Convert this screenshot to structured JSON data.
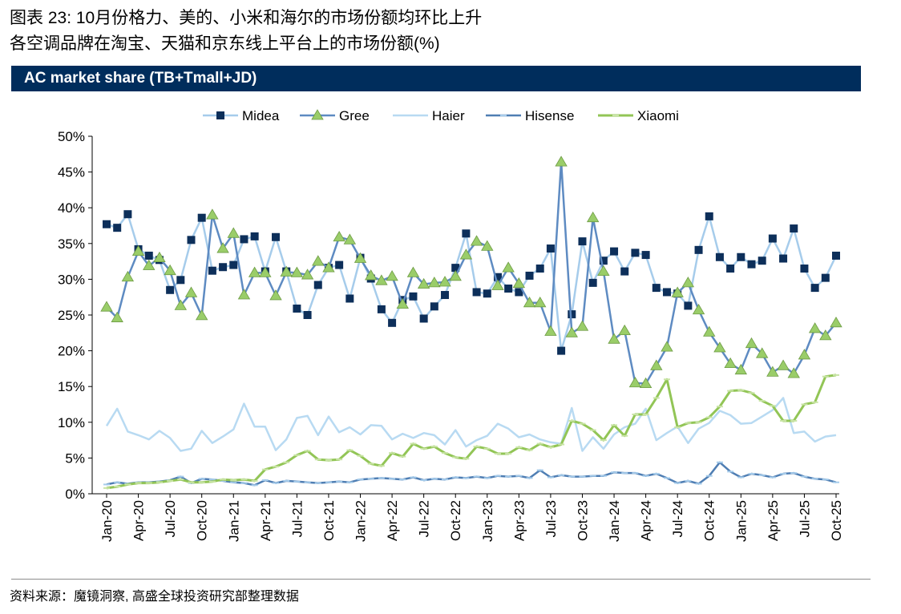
{
  "header": {
    "title_line1": "图表 23: 10月份格力、美的、小米和海尔的市场份额均环比上升",
    "title_line2": "各空调品牌在淘宝、天猫和京东线上平台上的市场份额(%)"
  },
  "banner": {
    "text": "AC market share (TB+Tmall+JD)"
  },
  "source": {
    "text": "资料来源：魔镜洞察, 高盛全球投资研究部整理数据"
  },
  "chart_data": {
    "type": "line",
    "title": "AC market share (TB+Tmall+JD)",
    "xlabel": "",
    "ylabel": "",
    "ylim": [
      0,
      50
    ],
    "yticks": [
      0,
      5,
      10,
      15,
      20,
      25,
      30,
      35,
      40,
      45,
      50
    ],
    "ytick_labels": [
      "0%",
      "5%",
      "10%",
      "15%",
      "20%",
      "25%",
      "30%",
      "35%",
      "40%",
      "45%",
      "50%"
    ],
    "x_tick_labels": [
      "Jan-20",
      "Apr-20",
      "Jul-20",
      "Oct-20",
      "Jan-21",
      "Apr-21",
      "Jul-21",
      "Oct-21",
      "Jan-22",
      "Apr-22",
      "Jul-22",
      "Oct-22",
      "Jan-23",
      "Apr-23",
      "Jul-23",
      "Oct-23",
      "Jan-24",
      "Apr-24",
      "Jul-24",
      "Oct-24",
      "Jan-25",
      "Apr-25",
      "Jul-25",
      "Oct-25"
    ],
    "x_tick_every": 3,
    "grid": false,
    "legend": "top-center",
    "categories": [
      "Jan-20",
      "Feb-20",
      "Mar-20",
      "Apr-20",
      "May-20",
      "Jun-20",
      "Jul-20",
      "Aug-20",
      "Sep-20",
      "Oct-20",
      "Nov-20",
      "Dec-20",
      "Jan-21",
      "Feb-21",
      "Mar-21",
      "Apr-21",
      "May-21",
      "Jun-21",
      "Jul-21",
      "Aug-21",
      "Sep-21",
      "Oct-21",
      "Nov-21",
      "Dec-21",
      "Jan-22",
      "Feb-22",
      "Mar-22",
      "Apr-22",
      "May-22",
      "Jun-22",
      "Jul-22",
      "Aug-22",
      "Sep-22",
      "Oct-22",
      "Nov-22",
      "Dec-22",
      "Jan-23",
      "Feb-23",
      "Mar-23",
      "Apr-23",
      "May-23",
      "Jun-23",
      "Jul-23",
      "Aug-23",
      "Sep-23",
      "Oct-23",
      "Nov-23",
      "Dec-23",
      "Jan-24",
      "Feb-24",
      "Mar-24",
      "Apr-24",
      "May-24",
      "Jun-24",
      "Jul-24",
      "Aug-24",
      "Sep-24",
      "Oct-24",
      "Nov-24",
      "Dec-24",
      "Jan-25",
      "Feb-25",
      "Mar-25",
      "Apr-25",
      "May-25",
      "Jun-25",
      "Jul-25",
      "Aug-25",
      "Sep-25",
      "Oct-25"
    ],
    "series": [
      {
        "name": "Midea",
        "color": "#A6CCEB",
        "marker": "square",
        "marker_color": "#0D2F5A",
        "values": [
          37.7,
          37.2,
          39.1,
          34.2,
          33.3,
          32.7,
          28.5,
          29.9,
          35.5,
          38.6,
          31.2,
          31.7,
          32.0,
          35.6,
          36.0,
          31.1,
          35.9,
          31.1,
          25.9,
          25.0,
          29.2,
          31.6,
          32.0,
          27.3,
          33.0,
          30.1,
          25.8,
          23.9,
          27.1,
          27.6,
          24.5,
          26.2,
          27.8,
          31.6,
          36.4,
          28.2,
          28.0,
          30.3,
          28.7,
          28.2,
          30.5,
          31.5,
          34.3,
          20.0,
          25.1,
          35.3,
          29.5,
          32.6,
          33.9,
          31.1,
          33.7,
          33.4,
          28.8,
          28.2,
          28.0,
          26.3,
          34.1,
          38.8,
          33.1,
          31.5,
          33.1,
          32.1,
          32.6,
          35.7,
          32.9,
          37.1,
          31.5,
          28.8,
          30.2,
          33.3
        ]
      },
      {
        "name": "Gree",
        "color": "#5E8BC2",
        "marker": "triangle",
        "marker_color": "#9ACD69",
        "values": [
          26.1,
          24.6,
          30.3,
          33.9,
          31.9,
          33.0,
          31.2,
          26.3,
          28.1,
          24.9,
          39.0,
          34.3,
          36.4,
          27.8,
          30.9,
          30.9,
          27.7,
          31.0,
          30.9,
          30.6,
          32.5,
          31.6,
          35.9,
          35.5,
          32.9,
          30.5,
          29.8,
          30.4,
          26.5,
          30.9,
          29.3,
          29.5,
          29.6,
          30.4,
          33.4,
          35.3,
          34.6,
          29.1,
          31.6,
          29.4,
          26.7,
          26.7,
          22.7,
          46.4,
          22.5,
          23.4,
          38.6,
          31.1,
          21.6,
          22.8,
          15.5,
          15.4,
          17.9,
          20.5,
          28.1,
          29.5,
          25.7,
          22.6,
          20.4,
          18.2,
          17.3,
          21.0,
          19.6,
          17.0,
          17.9,
          16.8,
          19.4,
          23.1,
          22.1,
          23.9
        ]
      },
      {
        "name": "Haier",
        "color": "#B8DAF2",
        "values": [
          9.5,
          11.9,
          8.7,
          8.2,
          7.6,
          8.8,
          7.8,
          6.0,
          6.3,
          8.8,
          7.1,
          8.0,
          9.0,
          12.6,
          9.4,
          9.4,
          6.1,
          7.6,
          10.6,
          10.9,
          8.2,
          10.8,
          8.6,
          9.3,
          8.3,
          9.6,
          9.5,
          7.6,
          8.4,
          7.8,
          8.5,
          8.2,
          6.9,
          8.9,
          6.6,
          7.5,
          8.1,
          9.8,
          9.1,
          7.9,
          8.3,
          7.6,
          7.2,
          7.0,
          12.0,
          6.0,
          7.9,
          6.3,
          8.3,
          9.3,
          9.8,
          11.9,
          7.5,
          8.5,
          9.4,
          7.1,
          9.1,
          9.9,
          11.6,
          11.0,
          9.8,
          9.9,
          10.8,
          11.7,
          13.4,
          8.5,
          8.7,
          7.3,
          8.0,
          8.2
        ]
      },
      {
        "name": "Hisense",
        "color": "#4F7EB3",
        "marker": "dash",
        "marker_color": "#A6CCEB",
        "values": [
          1.3,
          1.6,
          1.4,
          1.6,
          1.6,
          1.7,
          1.9,
          2.4,
          1.5,
          2.1,
          2.0,
          1.8,
          1.6,
          1.5,
          1.2,
          1.9,
          1.5,
          1.8,
          1.7,
          1.6,
          1.5,
          1.6,
          1.7,
          1.6,
          2.0,
          2.1,
          2.2,
          2.1,
          2.0,
          2.3,
          1.9,
          2.1,
          2.0,
          2.3,
          2.2,
          2.4,
          2.2,
          2.5,
          2.4,
          2.5,
          2.2,
          3.3,
          2.3,
          2.6,
          2.4,
          2.4,
          2.5,
          2.5,
          3.0,
          2.9,
          2.9,
          2.5,
          2.8,
          2.2,
          1.5,
          1.8,
          1.4,
          2.5,
          4.4,
          3.1,
          2.3,
          2.8,
          2.6,
          2.3,
          2.8,
          2.9,
          2.4,
          2.1,
          2.0,
          1.6
        ]
      },
      {
        "name": "Xiaomi",
        "color": "#92C556",
        "marker": "dash",
        "marker_color": "#C9E4A6",
        "values": [
          0.8,
          1.0,
          1.3,
          1.5,
          1.5,
          1.6,
          1.8,
          2.0,
          1.6,
          1.6,
          1.7,
          2.0,
          1.9,
          2.0,
          1.8,
          3.4,
          3.8,
          4.4,
          5.4,
          6.0,
          4.8,
          4.7,
          4.8,
          6.1,
          5.3,
          4.2,
          3.9,
          5.7,
          5.2,
          7.0,
          6.3,
          6.6,
          5.7,
          5.1,
          4.9,
          6.6,
          6.3,
          5.6,
          5.6,
          6.5,
          6.1,
          7.0,
          6.5,
          6.9,
          10.2,
          9.8,
          8.9,
          7.5,
          9.6,
          8.1,
          11.1,
          11.1,
          13.4,
          16.0,
          9.3,
          9.9,
          10.0,
          10.7,
          12.2,
          14.4,
          14.5,
          14.1,
          13.0,
          12.3,
          10.2,
          10.2,
          12.5,
          12.8,
          16.4,
          16.6
        ]
      }
    ]
  }
}
